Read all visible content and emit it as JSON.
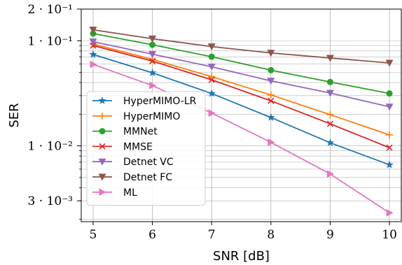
{
  "chart_data": {
    "type": "line",
    "xlabel": "SNR [dB]",
    "ylabel": "SER",
    "yscale": "log",
    "xlim": [
      4.8,
      10.2
    ],
    "ylim": [
      0.0019,
      0.2
    ],
    "grid": true,
    "legend_position": "lower-left",
    "x": [
      5,
      6,
      7,
      8,
      9,
      10
    ],
    "x_ticks": [
      "5",
      "6",
      "7",
      "8",
      "9",
      "10"
    ],
    "y_ticks": [
      {
        "value": 0.2,
        "label": "2 · 10⁻¹"
      },
      {
        "value": 0.1,
        "label": "1 · 10⁻¹"
      },
      {
        "value": 0.01,
        "label": "1 · 10⁻²"
      },
      {
        "value": 0.003,
        "label": "3 · 10⁻³"
      }
    ],
    "series": [
      {
        "name": "HyperMIMO-LR",
        "color": "#1f77b4",
        "marker": "star",
        "values": [
          0.074,
          0.0495,
          0.0315,
          0.0186,
          0.0107,
          0.0066
        ]
      },
      {
        "name": "HyperMIMO",
        "color": "#ff7f0e",
        "marker": "plus",
        "values": [
          0.093,
          0.0665,
          0.0455,
          0.0305,
          0.0198,
          0.0127
        ]
      },
      {
        "name": "MMNet",
        "color": "#2ca02c",
        "marker": "circle",
        "values": [
          0.117,
          0.0915,
          0.0705,
          0.0525,
          0.0405,
          0.0315
        ]
      },
      {
        "name": "MMSE",
        "color": "#d62728",
        "marker": "x",
        "values": [
          0.09,
          0.064,
          0.0425,
          0.0268,
          0.0162,
          0.0096
        ]
      },
      {
        "name": "Detnet VC",
        "color": "#9467bd",
        "marker": "triangle_down",
        "values": [
          0.098,
          0.0745,
          0.0565,
          0.0415,
          0.0318,
          0.0235
        ]
      },
      {
        "name": "Detnet FC",
        "color": "#8c564b",
        "marker": "triangle_down",
        "values": [
          0.127,
          0.1045,
          0.088,
          0.0765,
          0.0685,
          0.0615
        ]
      },
      {
        "name": "ML",
        "color": "#e377c2",
        "marker": "triangle_right",
        "values": [
          0.0595,
          0.0375,
          0.0205,
          0.0108,
          0.0054,
          0.0023
        ]
      }
    ]
  }
}
